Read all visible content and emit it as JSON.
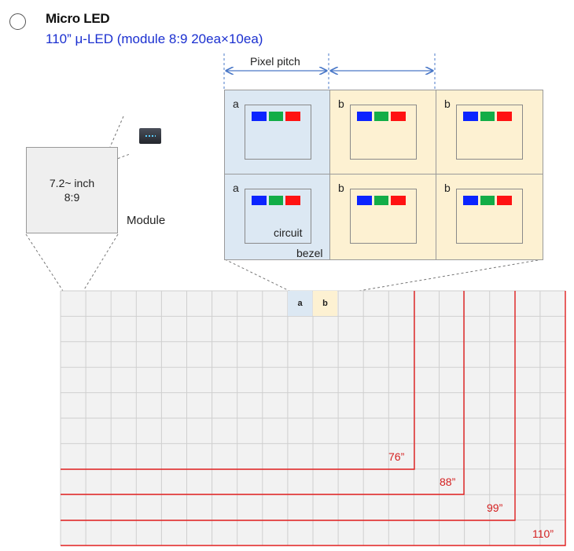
{
  "header": {
    "title": "Micro LED",
    "subtitle": "110” μ-LED (module 8:9 20ea×10ea)"
  },
  "module": {
    "size_line1": "7.2~ inch",
    "size_line2": "8:9",
    "label": "Module"
  },
  "pixel_detail": {
    "pitch_label": "Pixel pitch",
    "cells": [
      {
        "label": "a",
        "type": "a"
      },
      {
        "label": "b",
        "type": "b"
      },
      {
        "label": "b",
        "type": "b"
      },
      {
        "label": "a",
        "type": "a"
      },
      {
        "label": "b",
        "type": "b"
      },
      {
        "label": "b",
        "type": "b"
      }
    ],
    "circuit_label": "circuit",
    "bezel_label": "bezel",
    "colors": {
      "cell_a": "#dce8f3",
      "cell_b": "#fdf1d2",
      "red": "#ff1212",
      "green": "#12ad47",
      "blue": "#0b24ff"
    }
  },
  "grid": {
    "highlight_a": "a",
    "highlight_b": "b",
    "sizes": [
      "76”",
      "88”",
      "99”",
      "110”"
    ],
    "line_color": "#e22020"
  }
}
